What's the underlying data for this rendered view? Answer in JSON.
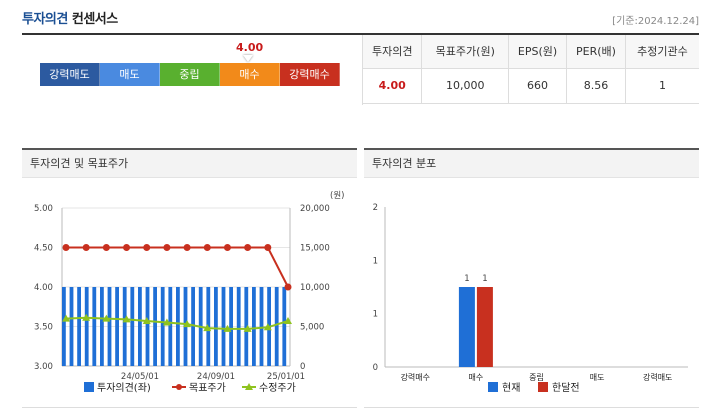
{
  "header": {
    "title": "투자의견",
    "subtitle": "컨센서스",
    "date": "[기준:2024.12.24]"
  },
  "scale": {
    "value": "4.00",
    "levels": [
      {
        "label": "강력매도",
        "color": "#2c5aa0"
      },
      {
        "label": "매도",
        "color": "#4a8ae0"
      },
      {
        "label": "중립",
        "color": "#59b02f"
      },
      {
        "label": "매수",
        "color": "#f28a1a"
      },
      {
        "label": "강력매수",
        "color": "#c8301f"
      }
    ],
    "selected_level_index": 3
  },
  "consensus_table": {
    "headers": [
      "투자의견",
      "목표주가(원)",
      "EPS(원)",
      "PER(배)",
      "추정기관수"
    ],
    "row": [
      "4.00",
      "10,000",
      "660",
      "8.56",
      "1"
    ]
  },
  "left_panel": {
    "title": "투자의견 및 목표주가"
  },
  "right_panel": {
    "title": "투자의견 분포"
  },
  "chart_data": [
    {
      "type": "bar+line",
      "y_left": {
        "min": 3.0,
        "max": 5.0,
        "ticks": [
          "5.00",
          "4.50",
          "4.00",
          "3.50",
          "3.00"
        ]
      },
      "y_right": {
        "min": 0,
        "max": 20000,
        "ticks": [
          "20,000",
          "15,000",
          "10,000",
          "5,000",
          "0"
        ],
        "unit": "(원)"
      },
      "x_tick_labels": [
        "24/05/01",
        "24/09/01",
        "25/01/01"
      ],
      "series": [
        {
          "name": "투자의견(좌)",
          "kind": "bar",
          "color": "#1f6fd6",
          "values": [
            4,
            4,
            4,
            4,
            4,
            4,
            4,
            4,
            4,
            4,
            4,
            4,
            4,
            4,
            4,
            4,
            4,
            4,
            4,
            4,
            4,
            4,
            4,
            4,
            4,
            4,
            4,
            4,
            4,
            4,
            4,
            4,
            4,
            4,
            4,
            4,
            4,
            4,
            4,
            4,
            4,
            4,
            4,
            4,
            4,
            4,
            4,
            4,
            4,
            4,
            4,
            4,
            4,
            4,
            4,
            4,
            4,
            4,
            4,
            4
          ]
        },
        {
          "name": "목표주가",
          "kind": "line",
          "color": "#c8301f",
          "marker": "circle",
          "values": [
            15000,
            15000,
            15000,
            15000,
            15000,
            15000,
            15000,
            15000,
            15000,
            15000,
            15000,
            10000
          ]
        },
        {
          "name": "수정주가",
          "kind": "line",
          "color": "#8fc31f",
          "marker": "triangle",
          "values": [
            6000,
            6100,
            6000,
            5900,
            5700,
            5500,
            5300,
            4800,
            4700,
            4700,
            4900,
            5700
          ]
        }
      ]
    },
    {
      "type": "bar",
      "categories": [
        "강력매수",
        "매수",
        "중립",
        "매도",
        "강력매도"
      ],
      "y_ticks": [
        "2",
        "1",
        "1",
        "0"
      ],
      "ylim": [
        0,
        2
      ],
      "series": [
        {
          "name": "현재",
          "color": "#1f6fd6",
          "values": [
            0,
            1,
            0,
            0,
            0
          ]
        },
        {
          "name": "한달전",
          "color": "#c8301f",
          "values": [
            0,
            1,
            0,
            0,
            0
          ]
        }
      ]
    }
  ]
}
